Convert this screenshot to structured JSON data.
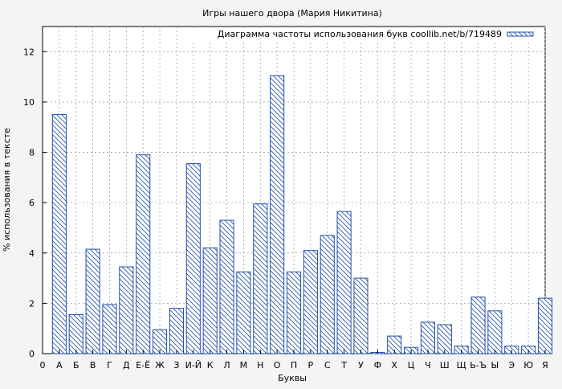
{
  "chart_data": {
    "type": "bar",
    "title": "Игры нашего двора (Мария Никитина)",
    "xlabel": "Буквы",
    "ylabel": "% использования в тексте",
    "x_origin_label": "0",
    "categories": [
      "А",
      "Б",
      "В",
      "Г",
      "Д",
      "Е-Ё",
      "Ж",
      "З",
      "И-Й",
      "К",
      "Л",
      "М",
      "Н",
      "О",
      "П",
      "Р",
      "С",
      "Т",
      "У",
      "Ф",
      "Х",
      "Ц",
      "Ч",
      "Ш",
      "Щ",
      "Ь-Ъ",
      "Ы",
      "Э",
      "Ю",
      "Я"
    ],
    "series": [
      {
        "name": "Диаграмма частоты использования букв coollib.net/b/719489",
        "values": [
          9.5,
          1.55,
          4.15,
          1.95,
          3.45,
          7.9,
          0.95,
          1.8,
          7.55,
          4.2,
          5.3,
          3.25,
          5.95,
          11.05,
          3.25,
          4.1,
          4.7,
          5.65,
          3.0,
          0.05,
          0.7,
          0.25,
          1.25,
          1.15,
          0.3,
          2.25,
          1.7,
          0.3,
          0.3,
          2.2
        ]
      }
    ],
    "ylim": [
      0,
      13
    ],
    "yticks": [
      0,
      2,
      4,
      6,
      8,
      10,
      12
    ],
    "grid": true,
    "legend_position": "top-right",
    "colors": {
      "bar_stroke": "#1f4fa8",
      "hatch": "#1f4fa8",
      "bar_fill": "#ffffff",
      "background": "#f4f4f4",
      "plot_bg": "#ffffff",
      "grid": "#a0a0a0"
    }
  }
}
